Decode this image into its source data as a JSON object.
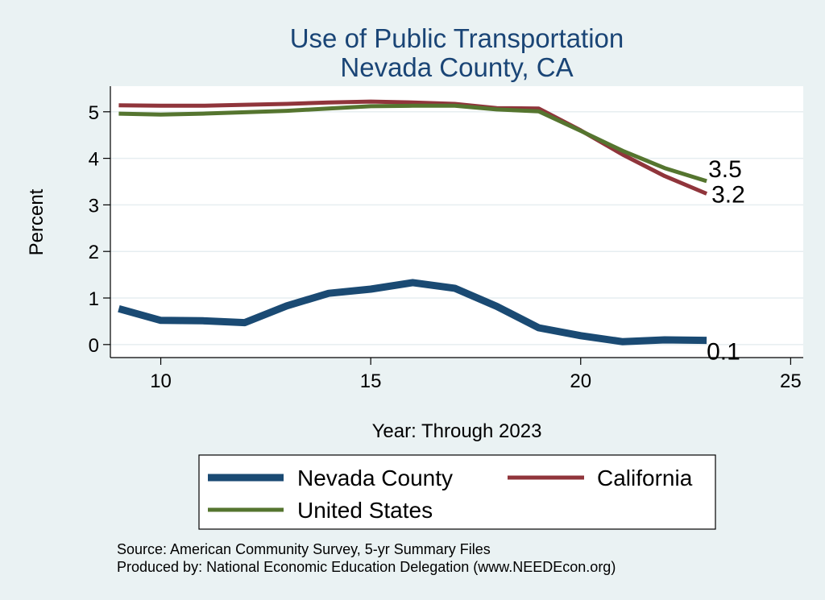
{
  "chart_data": {
    "type": "line",
    "title": [
      "Use of Public Transportation",
      "Nevada County, CA"
    ],
    "xlabel": "Year: Through 2023",
    "ylabel": "Percent",
    "xlim": [
      8.8,
      25.3
    ],
    "ylim": [
      -0.28,
      5.55
    ],
    "xticks": [
      10,
      15,
      20,
      25
    ],
    "yticks": [
      0,
      1,
      2,
      3,
      4,
      5
    ],
    "grid": true,
    "x": [
      9,
      10,
      11,
      12,
      13,
      14,
      15,
      16,
      17,
      18,
      19,
      20,
      21,
      22,
      23
    ],
    "series": [
      {
        "name": "Nevada County",
        "color": "#1a4a73",
        "values": [
          0.77,
          0.52,
          0.51,
          0.47,
          0.83,
          1.1,
          1.19,
          1.33,
          1.21,
          0.82,
          0.36,
          0.19,
          0.06,
          0.1,
          0.09
        ],
        "end_label": "0.1"
      },
      {
        "name": "California",
        "color": "#90353b",
        "values": [
          5.14,
          5.13,
          5.13,
          5.15,
          5.17,
          5.2,
          5.22,
          5.2,
          5.17,
          5.08,
          5.07,
          4.6,
          4.08,
          3.62,
          3.24
        ],
        "end_label": "3.2"
      },
      {
        "name": "United States",
        "color": "#55752f",
        "values": [
          4.96,
          4.94,
          4.96,
          4.99,
          5.02,
          5.07,
          5.12,
          5.13,
          5.13,
          5.05,
          5.01,
          4.59,
          4.16,
          3.79,
          3.51
        ],
        "end_label": "3.5"
      }
    ],
    "legend": {
      "position": "bottom",
      "entries": [
        "Nevada County",
        "California",
        "United States"
      ]
    },
    "notes": [
      "Source: American Community Survey, 5-yr Summary Files",
      "Produced by: National Economic Education Delegation (www.NEEDEcon.org)"
    ]
  }
}
